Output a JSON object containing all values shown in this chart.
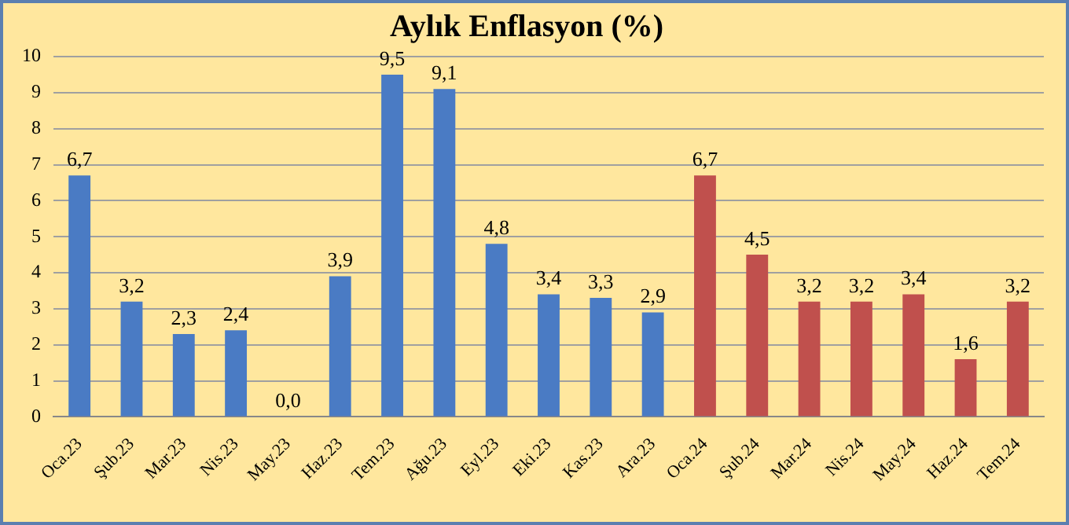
{
  "chart_data": {
    "type": "bar",
    "title": "Aylık Enflasyon (%)",
    "categories": [
      "Oca.23",
      "Şub.23",
      "Mar.23",
      "Nis.23",
      "May.23",
      "Haz.23",
      "Tem.23",
      "Ağu.23",
      "Eyl.23",
      "Eki.23",
      "Kas.23",
      "Ara.23",
      "Oca.24",
      "Şub.24",
      "Mar.24",
      "Nis.24",
      "May.24",
      "Haz.24",
      "Tem.24"
    ],
    "values": [
      6.7,
      3.2,
      2.3,
      2.4,
      0.0,
      3.9,
      9.5,
      9.1,
      4.8,
      3.4,
      3.3,
      2.9,
      6.7,
      4.5,
      3.2,
      3.2,
      3.4,
      1.6,
      3.2
    ],
    "value_labels": [
      "6,7",
      "3,2",
      "2,3",
      "2,4",
      "0,0",
      "3,9",
      "9,5",
      "9,1",
      "4,8",
      "3,4",
      "3,3",
      "2,9",
      "6,7",
      "4,5",
      "3,2",
      "3,2",
      "3,4",
      "1,6",
      "3,2"
    ],
    "colors": [
      "#4a7bc4",
      "#4a7bc4",
      "#4a7bc4",
      "#4a7bc4",
      "#4a7bc4",
      "#4a7bc4",
      "#4a7bc4",
      "#4a7bc4",
      "#4a7bc4",
      "#4a7bc4",
      "#4a7bc4",
      "#4a7bc4",
      "#c0504d",
      "#c0504d",
      "#c0504d",
      "#c0504d",
      "#c0504d",
      "#c0504d",
      "#c0504d"
    ],
    "ylim": [
      0,
      10
    ],
    "yticks": [
      0,
      1,
      2,
      3,
      4,
      5,
      6,
      7,
      8,
      9,
      10
    ],
    "grid": "y",
    "legend": false
  }
}
